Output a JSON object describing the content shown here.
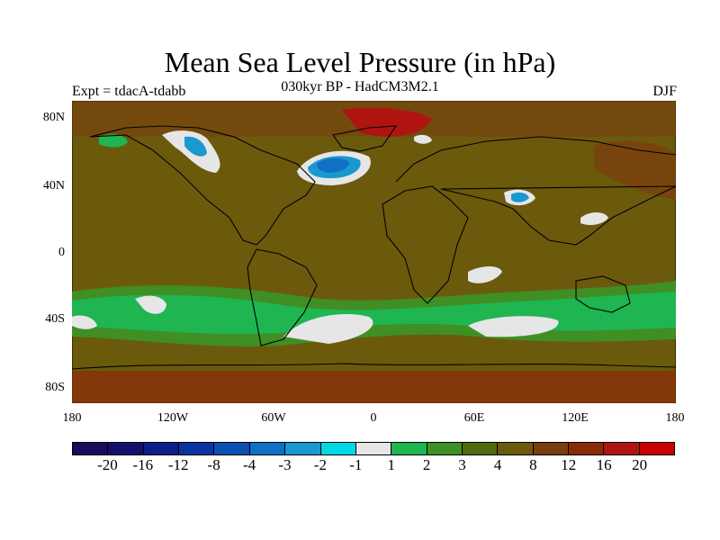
{
  "title": "Mean Sea Level Pressure (in hPa)",
  "subtitle": "030kyr BP - HadCM3M2.1",
  "expt_label": "Expt = tdacA-tdabb",
  "season": "DJF",
  "map": {
    "projection": "equirectangular",
    "lon_range": [
      -180,
      180
    ],
    "lat_range": [
      -90,
      90
    ],
    "background_color": "#6b5a0c",
    "coastline_color": "#000000",
    "y_ticks": [
      {
        "lat": 80,
        "label": "80N"
      },
      {
        "lat": 40,
        "label": "40N"
      },
      {
        "lat": 0,
        "label": "0"
      },
      {
        "lat": -40,
        "label": "40S"
      },
      {
        "lat": -80,
        "label": "80S"
      }
    ],
    "x_ticks": [
      {
        "lon": -180,
        "label": "180"
      },
      {
        "lon": -120,
        "label": "120W"
      },
      {
        "lon": -60,
        "label": "60W"
      },
      {
        "lon": 0,
        "label": "0"
      },
      {
        "lon": 60,
        "label": "60E"
      },
      {
        "lon": 120,
        "label": "120E"
      },
      {
        "lon": 180,
        "label": "180"
      }
    ]
  },
  "colorbar": {
    "colors": [
      "#1a0b5c",
      "#10106e",
      "#0a1f8c",
      "#0a35a0",
      "#0a4fb4",
      "#1070c4",
      "#1a98d0",
      "#00d8e6",
      "#e6e6e6",
      "#1fb551",
      "#3f8f25",
      "#4d6c10",
      "#6b5a0c",
      "#7a3e0e",
      "#8c2a08",
      "#b01410",
      "#cc0000"
    ],
    "labels": [
      "-20",
      "-16",
      "-12",
      "-8",
      "-4",
      "-3",
      "-2",
      "-1",
      "1",
      "2",
      "3",
      "4",
      "8",
      "12",
      "16",
      "20"
    ]
  }
}
